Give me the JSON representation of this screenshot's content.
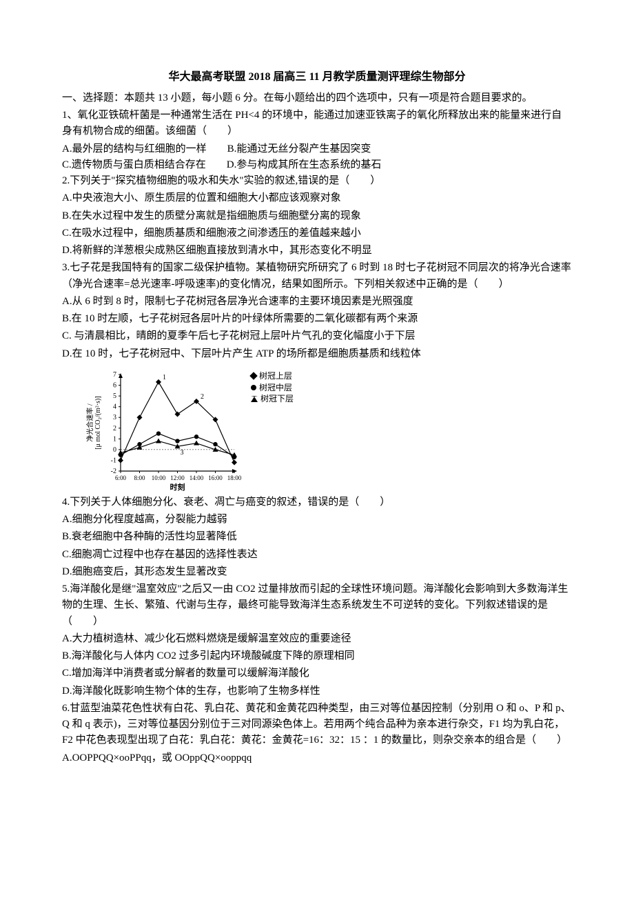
{
  "title": "华大最高考联盟 2018 届高三 11 月教学质量测评理综生物部分",
  "intro": "一、选择题：本题共 13 小题，每小题 6 分。在每小题给出的四个选项中，只有一项是符合题目要求的。",
  "q1": {
    "stem": "1、氧化亚铁硫杆菌是一种通常生活在 PH<4 的环境中，能通过加速亚铁离子的氧化所释放出来的能量来进行自身有机物合成的细菌。该细菌（　　）",
    "A": "A.最外层的结构与红细胞的一样",
    "B": "B.能通过无丝分裂产生基因突变",
    "C": "C.遗传物质与蛋白质相结合存在",
    "D": "D.参与构成其所在生态系统的基石"
  },
  "q2": {
    "stem": "2.下列关于\"探究植物细胞的吸水和失水\"实验的叙述,错误的是（　　）",
    "A": "A.中央液泡大小、原生质层的位置和细胞大小都应该观察对象",
    "B": "B.在失水过程中发生的质壁分离就是指细胞质与细胞壁分离的现象",
    "C": "C.在吸水过程中，细胞质基质和细胞液之间渗透压的差值越来越小",
    "D": "D.将新鲜的洋葱根尖成熟区细胞直接放到清水中，其形态变化不明显"
  },
  "q3": {
    "stem1": "3.七子花是我国特有的国家二级保护植物。某植物研究所研究了 6 时到 18 时七子花树冠不同层次的将净光合速率（净光合速率=总光速率-呼吸速率)的变化情况，结果如图所示。下列相关叙述中正确的是（　　）",
    "A": "A.从 6 时到 8 时，限制七子花树冠各层净光合速率的主要环境因素是光照强度",
    "B": "B.在 10 时左顺，七子花树冠各层叶片的叶绿体所需要的二氧化碳都有两个来源",
    "C": "C. 与清晨相比，晴朗的夏季午后七子花树冠上层叶片气孔的变化幅度小于下层",
    "D": "D.在 10 时，七子花树冠中、下层叶片产生 ATP 的场所都是细胞质基质和线粒体"
  },
  "chart": {
    "type": "line",
    "ylabel": "净光合速率 /\n[μ mol CO₂/(m²·s)]",
    "xlabel": "时刻",
    "ylim": [
      -2,
      7
    ],
    "yticks": [
      -2,
      -1,
      0,
      1,
      2,
      3,
      4,
      5,
      6,
      7
    ],
    "xticks": [
      "6:00",
      "8:00",
      "10:00",
      "12:00",
      "14:00",
      "16:00",
      "18:00"
    ],
    "legend": [
      "树冠上层",
      "树冠中层",
      "树冠下层"
    ],
    "series": [
      {
        "name": "树冠上层",
        "marker": "diamond-filled",
        "color": "#000000",
        "y": [
          -1.0,
          3.0,
          6.3,
          3.3,
          4.5,
          2.8,
          -1.2
        ]
      },
      {
        "name": "树冠中层",
        "marker": "circle-filled",
        "color": "#000000",
        "y": [
          -0.5,
          0.5,
          1.5,
          0.8,
          1.2,
          0.5,
          -0.7
        ]
      },
      {
        "name": "树冠下层",
        "marker": "triangle-filled",
        "color": "#000000",
        "y": [
          -0.3,
          0.2,
          0.8,
          0.3,
          0.6,
          0.0,
          -0.5
        ]
      }
    ],
    "label_points": [
      "1",
      "2",
      "3"
    ],
    "background_color": "#ffffff",
    "axis_color": "#000000",
    "line_width": 1.2,
    "fontsize": 10
  },
  "q4": {
    "stem": "4.下列关于人体细胞分化、衰老、凋亡与癌变的叙述，错误的是（　　）",
    "A": "A.细胞分化程度越高，分裂能力越弱",
    "B": "B.衰老细胞中各种酶的活性均显著降低",
    "C": "C.细胞凋亡过程中也存在基因的选择性表达",
    "D": "D.细胞癌变后，其形态发生显著改变"
  },
  "q5": {
    "stem": "5.海洋酸化是继\"温室效应\"之后又一由 CO2 过量排放而引起的全球性环境问题。海洋酸化会影响到大多数海洋生物的生理、生长、繁殖、代谢与生存，最终可能导致海洋生态系统发生不可逆转的变化。下列叙述错误的是（　　）",
    "A": "A.大力植树造林、减少化石燃料燃烧是缓解温室效应的重要途径",
    "B": "B.海洋酸化与人体内 CO2 过多引起内环境酸碱度下降的原理相同",
    "C": "C.增加海洋中消费者或分解者的数量可以缓解海洋酸化",
    "D": "D.海洋酸化既影响生物个体的生存，也影响了生物多样性"
  },
  "q6": {
    "stem": "6.甘蓝型油菜花色性状有白花、乳白花、黄花和金黄花四种类型，由三对等位基因控制（分别用 O 和 o、P 和 p、Q 和 q 表示)，三对等位基因分别位于三对同源染色体上。若用两个纯合品种为亲本进行杂交，F1 均为乳白花，F2 中花色表现型出现了白花：乳白花：黄花：金黄花=16：32：15 ：1 的数量比，则杂交亲本的组合是（　　）",
    "A": "A.OOPPQQ×ooPPqq，或  OOppQQ×ooppqq"
  }
}
